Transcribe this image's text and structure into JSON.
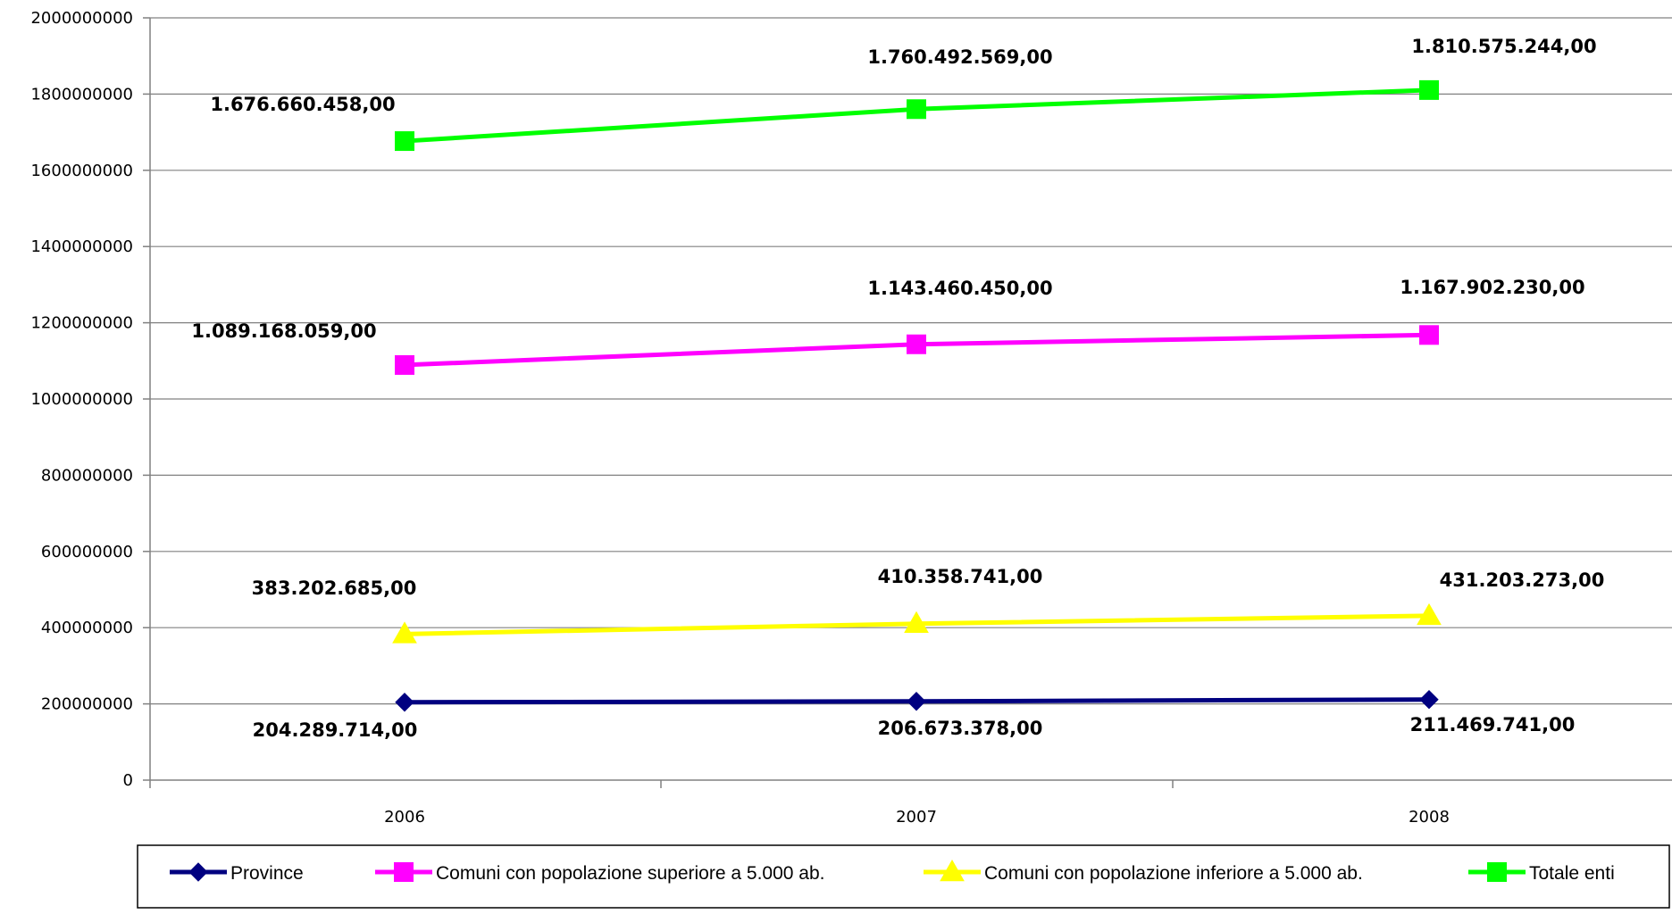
{
  "chart_data": {
    "type": "line",
    "title": "",
    "xlabel": "",
    "ylabel": "",
    "categories": [
      "2006",
      "2007",
      "2008"
    ],
    "ylim": [
      0,
      2000000000
    ],
    "y_ticks": [
      0,
      200000000,
      400000000,
      600000000,
      800000000,
      1000000000,
      1200000000,
      1400000000,
      1600000000,
      1800000000,
      2000000000
    ],
    "y_tick_labels": [
      "0",
      "200000000",
      "400000000",
      "600000000",
      "800000000",
      "1000000000",
      "1200000000",
      "1400000000",
      "1600000000",
      "1800000000",
      "2000000000"
    ],
    "grid": true,
    "legend_position": "bottom",
    "series": [
      {
        "name": "Province",
        "color": "#000080",
        "marker": "diamond",
        "values": [
          204289714,
          206673378,
          211469741
        ],
        "labels": [
          "204.289.714,00",
          "206.673.378,00",
          "211.469.741,00"
        ]
      },
      {
        "name": "Comuni con popolazione superiore a 5.000 ab.",
        "color": "#ff00ff",
        "marker": "square",
        "values": [
          1089168059,
          1143460450,
          1167902230
        ],
        "labels": [
          "1.089.168.059,00",
          "1.143.460.450,00",
          "1.167.902.230,00"
        ]
      },
      {
        "name": "Comuni con popolazione inferiore a 5.000 ab.",
        "color": "#ffff00",
        "marker": "triangle",
        "values": [
          383202685,
          410358741,
          431203273
        ],
        "labels": [
          "383.202.685,00",
          "410.358.741,00",
          "431.203.273,00"
        ]
      },
      {
        "name": "Totale enti",
        "color": "#00ff00",
        "marker": "square",
        "values": [
          1676660458,
          1760492569,
          1810575244
        ],
        "labels": [
          "1.676.660.458,00",
          "1.760.492.569,00",
          "1.810.575.244,00"
        ]
      }
    ]
  }
}
